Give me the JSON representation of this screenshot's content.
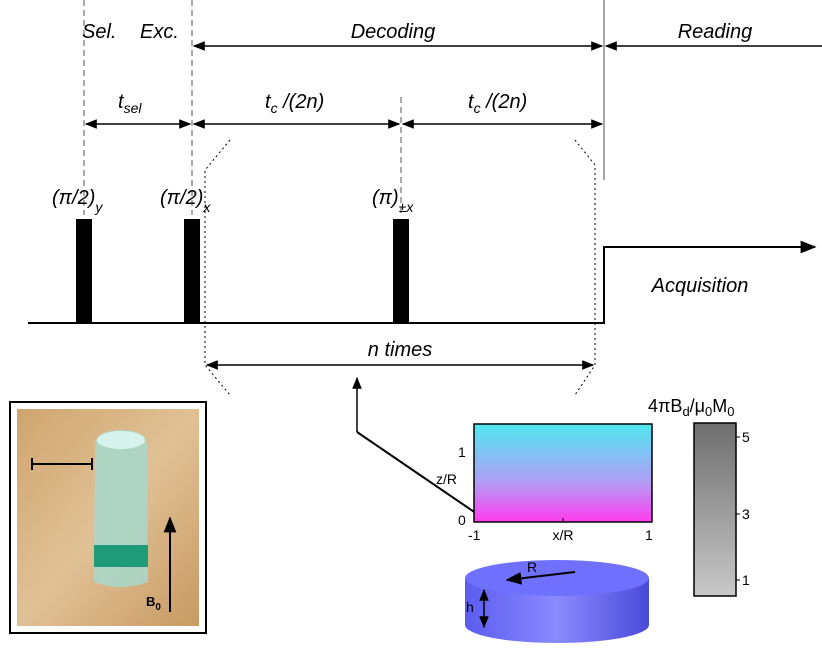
{
  "labels": {
    "sel": "Sel.",
    "exc": "Exc.",
    "decoding": "Decoding",
    "reading": "Reading",
    "acquisition": "Acquisition",
    "n_times": "n times"
  },
  "delays": {
    "t_sel": {
      "base": "t",
      "sub": "sel"
    },
    "tc1": {
      "base": "t",
      "sub": "c",
      "rest": " /(2n)"
    },
    "tc2": {
      "base": "t",
      "sub": "c",
      "rest": " /(2n)"
    }
  },
  "pulses": [
    {
      "base": "(π/2)",
      "sub": "y"
    },
    {
      "base": "(π/2)",
      "sub": "x"
    },
    {
      "base": "(π)",
      "sub": "±x"
    }
  ],
  "field_plot": {
    "y_label": "z/R",
    "x_label": "x/R",
    "y_tick_top": "1",
    "y_tick_bottom": "0",
    "x_tick_left": "-1",
    "x_tick_right": "1"
  },
  "cylinder": {
    "radius_label": "R",
    "height_label": "h"
  },
  "colorbar": {
    "title": [
      "4πB",
      "d",
      "/μ",
      "0",
      "M",
      "0"
    ],
    "ticks": [
      "5",
      "3",
      "1"
    ]
  },
  "photo": {
    "field_label": {
      "base": "B",
      "sub": "0"
    }
  }
}
